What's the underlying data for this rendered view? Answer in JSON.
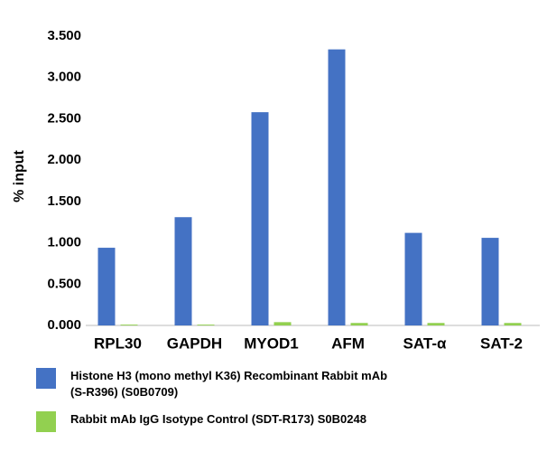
{
  "chart_data": {
    "type": "bar",
    "y_label": "% input",
    "categories": [
      "RPL30",
      "GAPDH",
      "MYOD1",
      "AFM",
      "SAT-α",
      "SAT-2"
    ],
    "series": [
      {
        "name": "Histone H3 (mono methyl K36) Recombinant Rabbit mAb (S-R396) (S0B0709)",
        "color": "#4472c4",
        "values": [
          0.94,
          1.31,
          2.58,
          3.34,
          1.12,
          1.06
        ]
      },
      {
        "name": "Rabbit mAb IgG Isotype Control (SDT-R173) S0B0248",
        "color": "#92d050",
        "values": [
          0.01,
          0.01,
          0.04,
          0.03,
          0.03,
          0.03
        ]
      }
    ],
    "ylim": [
      0,
      3.5
    ],
    "yticks": [
      {
        "value": 0,
        "label": "0.000"
      },
      {
        "value": 0.5,
        "label": "0.500"
      },
      {
        "value": 1,
        "label": "1.000"
      },
      {
        "value": 1.5,
        "label": "1.500"
      },
      {
        "value": 2,
        "label": "2.000"
      },
      {
        "value": 2.5,
        "label": "2.500"
      },
      {
        "value": 3,
        "label": "3.000"
      },
      {
        "value": 3.5,
        "label": "3.500"
      }
    ],
    "grid": false
  }
}
